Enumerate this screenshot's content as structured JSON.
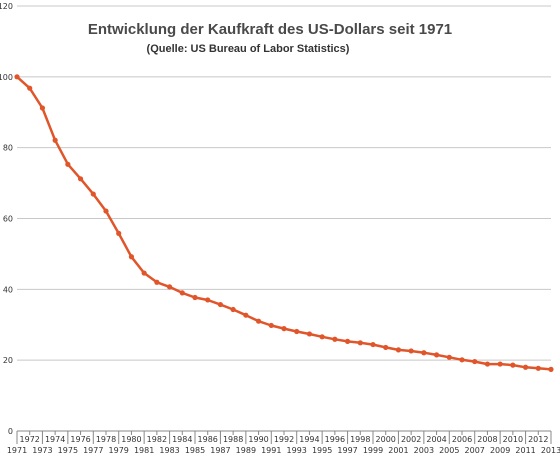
{
  "chart_data": {
    "type": "line",
    "title": "Entwicklung der Kaufkraft des US-Dollars seit 1971",
    "subtitle": "(Quelle: US Bureau of Labor Statistics)",
    "xlabel": "",
    "ylabel": "",
    "ylim": [
      0,
      120
    ],
    "y_ticks": [
      "0",
      "20",
      "40",
      "60",
      "80",
      "100",
      "120"
    ],
    "grid": true,
    "legend": "none",
    "line_color": "#e0552a",
    "x": [
      "1971",
      "1972",
      "1973",
      "1974",
      "1975",
      "1976",
      "1977",
      "1978",
      "1979",
      "1980",
      "1981",
      "1982",
      "1983",
      "1984",
      "1985",
      "1986",
      "1987",
      "1988",
      "1989",
      "1990",
      "1991",
      "1992",
      "1993",
      "1994",
      "1995",
      "1996",
      "1997",
      "1998",
      "1999",
      "2000",
      "2001",
      "2002",
      "2003",
      "2004",
      "2005",
      "2006",
      "2007",
      "2008",
      "2009",
      "2010",
      "2011",
      "2012",
      "2013"
    ],
    "series": [
      {
        "values": [
          100.0,
          96.8,
          91.2,
          82.1,
          75.3,
          71.2,
          66.9,
          62.1,
          55.8,
          49.2,
          44.6,
          42.0,
          40.7,
          39.0,
          37.7,
          37.0,
          35.7,
          34.3,
          32.7,
          31.0,
          29.8,
          28.9,
          28.1,
          27.4,
          26.6,
          25.9,
          25.3,
          24.9,
          24.4,
          23.6,
          22.9,
          22.6,
          22.1,
          21.5,
          20.8,
          20.1,
          19.6,
          18.9,
          18.9,
          18.6,
          18.0,
          17.7,
          17.4
        ]
      }
    ]
  }
}
